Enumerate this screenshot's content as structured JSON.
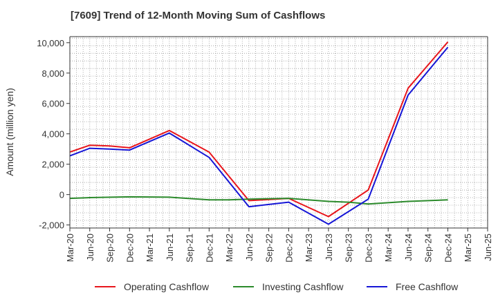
{
  "chart_data": {
    "type": "line",
    "title": "[7609]  Trend of 12-Month Moving Sum of Cashflows",
    "xlabel": "",
    "ylabel": "Amount (million yen)",
    "ylim": [
      -2200,
      10400
    ],
    "yticks": [
      -2000,
      0,
      2000,
      4000,
      6000,
      8000,
      10000
    ],
    "ytick_labels": [
      "-2,000",
      "0",
      "2,000",
      "4,000",
      "6,000",
      "8,000",
      "10,000"
    ],
    "grid": true,
    "legend_position": "bottom",
    "categories": [
      "Mar-20",
      "Jun-20",
      "Sep-20",
      "Dec-20",
      "Mar-21",
      "Jun-21",
      "Sep-21",
      "Dec-21",
      "Mar-22",
      "Jun-22",
      "Sep-22",
      "Dec-22",
      "Mar-23",
      "Jun-23",
      "Sep-23",
      "Dec-23",
      "Mar-24",
      "Jun-24",
      "Sep-24",
      "Dec-24",
      "Mar-25",
      "Jun-25"
    ],
    "series": [
      {
        "name": "Operating Cashflow",
        "color": "#e8151b",
        "values": [
          2800,
          3250,
          3200,
          3080,
          null,
          4220,
          null,
          2800,
          null,
          -400,
          null,
          -250,
          null,
          -1450,
          null,
          300,
          null,
          7000,
          null,
          10050,
          null,
          null
        ]
      },
      {
        "name": "Investing Cashflow",
        "color": "#2b8a2b",
        "values": [
          -250,
          -200,
          null,
          -150,
          null,
          -170,
          null,
          -350,
          -350,
          -300,
          null,
          -250,
          null,
          -450,
          -500,
          -620,
          null,
          -450,
          null,
          -350,
          null,
          null
        ]
      },
      {
        "name": "Free Cashflow",
        "color": "#1515d6",
        "values": [
          2550,
          3050,
          3000,
          2930,
          null,
          4050,
          null,
          2450,
          null,
          -800,
          null,
          -500,
          null,
          -1950,
          null,
          -300,
          null,
          6550,
          null,
          9700,
          null,
          null
        ]
      }
    ]
  }
}
